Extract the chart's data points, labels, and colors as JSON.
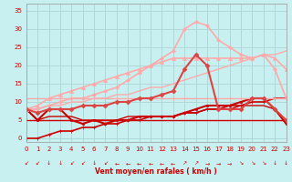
{
  "background_color": "#c8f0f0",
  "grid_color": "#b0d8d8",
  "xlabel": "Vent moyen/en rafales ( km/h )",
  "xlabel_color": "#cc0000",
  "ylabel_color": "#cc0000",
  "x_ticks": [
    0,
    1,
    2,
    3,
    4,
    5,
    6,
    7,
    8,
    9,
    10,
    11,
    12,
    13,
    14,
    15,
    16,
    17,
    18,
    19,
    20,
    21,
    22,
    23
  ],
  "y_ticks": [
    0,
    5,
    10,
    15,
    20,
    25,
    30,
    35
  ],
  "ylim": [
    -1,
    37
  ],
  "xlim": [
    0,
    23
  ],
  "series": [
    {
      "comment": "rising line from ~0 to ~11, dark red with + markers",
      "x": [
        0,
        1,
        2,
        3,
        4,
        5,
        6,
        7,
        8,
        9,
        10,
        11,
        12,
        13,
        14,
        15,
        16,
        17,
        18,
        19,
        20,
        21,
        22,
        23
      ],
      "y": [
        0,
        0,
        1,
        2,
        2,
        3,
        3,
        4,
        4,
        5,
        5,
        6,
        6,
        6,
        7,
        7,
        8,
        8,
        9,
        9,
        10,
        10,
        11,
        11
      ],
      "color": "#cc0000",
      "lw": 1.2,
      "marker": "+",
      "ms": 3,
      "ls": "-"
    },
    {
      "comment": "mostly flat ~5-6, dark red no marker (lower envelope)",
      "x": [
        0,
        1,
        2,
        3,
        4,
        5,
        6,
        7,
        8,
        9,
        10,
        11,
        12,
        13,
        14,
        15,
        16,
        17,
        18,
        19,
        20,
        21,
        22,
        23
      ],
      "y": [
        5,
        5,
        5,
        5,
        5,
        5,
        5,
        5,
        5,
        5,
        5,
        5,
        5,
        5,
        5,
        5,
        5,
        5,
        5,
        5,
        5,
        5,
        5,
        5
      ],
      "color": "#cc0000",
      "lw": 1.0,
      "marker": null,
      "ms": 0,
      "ls": "-"
    },
    {
      "comment": "dark red line with square markers, starts ~8, peaks ~11 ends ~8",
      "x": [
        0,
        1,
        2,
        3,
        4,
        5,
        6,
        7,
        8,
        9,
        10,
        11,
        12,
        13,
        14,
        15,
        16,
        17,
        18,
        19,
        20,
        21,
        22,
        23
      ],
      "y": [
        8,
        5,
        8,
        8,
        5,
        4,
        5,
        4,
        5,
        5,
        6,
        6,
        6,
        6,
        7,
        8,
        9,
        9,
        9,
        10,
        11,
        11,
        8,
        4
      ],
      "color": "#cc0000",
      "lw": 1.5,
      "marker": "s",
      "ms": 2,
      "ls": "-"
    },
    {
      "comment": "dark red solid line slightly above flat ~5-8",
      "x": [
        0,
        1,
        2,
        3,
        4,
        5,
        6,
        7,
        8,
        9,
        10,
        11,
        12,
        13,
        14,
        15,
        16,
        17,
        18,
        19,
        20,
        21,
        22,
        23
      ],
      "y": [
        8,
        5,
        6,
        6,
        6,
        5,
        5,
        5,
        5,
        6,
        6,
        6,
        6,
        6,
        7,
        7,
        8,
        8,
        8,
        9,
        9,
        9,
        8,
        5
      ],
      "color": "#cc0000",
      "lw": 1.0,
      "marker": null,
      "ms": 0,
      "ls": "-"
    },
    {
      "comment": "light pink, starts high ~11, stays around 11, with + markers",
      "x": [
        0,
        1,
        2,
        3,
        4,
        5,
        6,
        7,
        8,
        9,
        10,
        11,
        12,
        13,
        14,
        15,
        16,
        17,
        18,
        19,
        20,
        21,
        22,
        23
      ],
      "y": [
        11,
        11,
        11,
        11,
        11,
        11,
        11,
        11,
        11,
        11,
        11,
        11,
        11,
        11,
        11,
        11,
        11,
        11,
        11,
        11,
        11,
        11,
        11,
        11
      ],
      "color": "#ffaaaa",
      "lw": 1.0,
      "marker": "+",
      "ms": 3,
      "ls": "-"
    },
    {
      "comment": "light pink diagonal rising from ~8 to ~25",
      "x": [
        0,
        1,
        2,
        3,
        4,
        5,
        6,
        7,
        8,
        9,
        10,
        11,
        12,
        13,
        14,
        15,
        16,
        17,
        18,
        19,
        20,
        21,
        22,
        23
      ],
      "y": [
        8,
        8,
        9,
        9,
        10,
        10,
        11,
        11,
        12,
        12,
        13,
        14,
        14,
        15,
        16,
        17,
        18,
        19,
        20,
        21,
        22,
        23,
        23,
        24
      ],
      "color": "#ffaaaa",
      "lw": 1.0,
      "marker": null,
      "ms": 0,
      "ls": "-"
    },
    {
      "comment": "light pink, peaks at ~32 around x=15-16 then drops, diamond markers",
      "x": [
        0,
        1,
        2,
        3,
        4,
        5,
        6,
        7,
        8,
        9,
        10,
        11,
        12,
        13,
        14,
        15,
        16,
        17,
        18,
        19,
        20,
        21,
        22,
        23
      ],
      "y": [
        8,
        8,
        9,
        10,
        11,
        11,
        12,
        13,
        14,
        16,
        18,
        20,
        22,
        24,
        30,
        32,
        31,
        27,
        25,
        23,
        22,
        23,
        19,
        11
      ],
      "color": "#ffaaaa",
      "lw": 1.2,
      "marker": "D",
      "ms": 2,
      "ls": "-"
    },
    {
      "comment": "light pink with triangle markers, rises to ~23 at x=12-13 then stays",
      "x": [
        0,
        1,
        2,
        3,
        4,
        5,
        6,
        7,
        8,
        9,
        10,
        11,
        12,
        13,
        14,
        15,
        16,
        17,
        18,
        19,
        20,
        21,
        22,
        23
      ],
      "y": [
        8,
        9,
        11,
        12,
        13,
        14,
        15,
        16,
        17,
        18,
        19,
        20,
        21,
        22,
        22,
        22,
        22,
        22,
        22,
        22,
        22,
        23,
        22,
        19
      ],
      "color": "#ffaaaa",
      "lw": 1.2,
      "marker": "^",
      "ms": 3,
      "ls": "-"
    },
    {
      "comment": "medium red with diamond markers, rises then drops sharply at x=17-18",
      "x": [
        0,
        1,
        2,
        3,
        4,
        5,
        6,
        7,
        8,
        9,
        10,
        11,
        12,
        13,
        14,
        15,
        16,
        17,
        18,
        19,
        20,
        21,
        22,
        23
      ],
      "y": [
        8,
        7,
        8,
        8,
        8,
        9,
        9,
        9,
        10,
        10,
        11,
        11,
        12,
        13,
        19,
        23,
        20,
        8,
        8,
        8,
        11,
        11,
        8,
        5
      ],
      "color": "#dd4444",
      "lw": 1.5,
      "marker": "D",
      "ms": 2.5,
      "ls": "-"
    }
  ],
  "wind_symbols": [
    "↙",
    "↙",
    "↓",
    "↓",
    "↙",
    "↙",
    "↓",
    "↙",
    "←",
    "←",
    "←",
    "←",
    "←",
    "←",
    "↗",
    "↗",
    "→",
    "→",
    "→",
    "↘",
    "↘",
    "↘",
    "↓",
    "↓"
  ],
  "wind_symbol_color": "#cc0000",
  "wind_symbol_fontsize": 4.5
}
